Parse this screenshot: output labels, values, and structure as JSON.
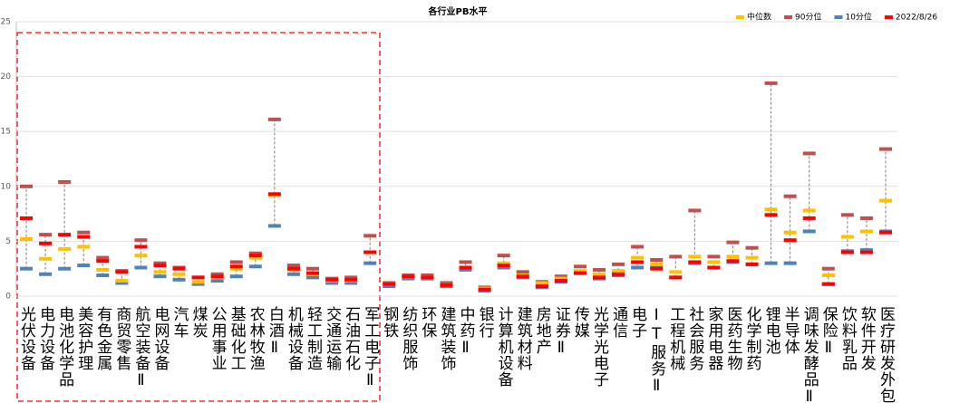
{
  "chart_data": {
    "type": "range",
    "title": "各行业PB水平",
    "categories": [
      "光伏设备",
      "电力设备",
      "电池化学品",
      "美容护理",
      "有色金属",
      "商贸零售",
      "航空装备Ⅱ",
      "电网设备",
      "汽车",
      "煤炭",
      "公用事业",
      "基础化工",
      "农林牧渔",
      "白酒Ⅱ",
      "机械设备",
      "轻工制造",
      "交通运输",
      "石油石化",
      "军工电子Ⅱ",
      "钢铁",
      "纺织服饰",
      "环保",
      "建筑装饰",
      "中药Ⅱ",
      "银行",
      "计算机设备",
      "建筑材料",
      "房地产",
      "证券Ⅱ",
      "传媒",
      "光学光电子",
      "通信",
      "电子",
      "IT服务Ⅱ",
      "工程机械",
      "社会服务",
      "家用电器",
      "医药生物",
      "化学制药",
      "锂电池",
      "半导体",
      "调味发酵品Ⅱ",
      "保险Ⅱ",
      "饮料乳品",
      "软件开发",
      "医疗研发外包"
    ],
    "series": [
      {
        "name": "中位数",
        "color": "#ffc000",
        "values": [
          5.2,
          3.4,
          4.3,
          4.5,
          2.4,
          1.4,
          3.7,
          2.2,
          2.0,
          1.3,
          1.7,
          2.5,
          3.5,
          9.2,
          2.4,
          2.0,
          1.4,
          1.4,
          4.0,
          1.1,
          1.8,
          1.7,
          1.0,
          2.6,
          0.7,
          3.0,
          1.9,
          1.2,
          1.6,
          2.3,
          2.0,
          2.3,
          3.5,
          2.9,
          2.2,
          3.6,
          3.1,
          3.6,
          3.5,
          7.9,
          5.8,
          7.8,
          1.9,
          5.4,
          5.9,
          8.7
        ]
      },
      {
        "name": "90分位",
        "color": "#c0504d",
        "values": [
          10.0,
          5.6,
          10.4,
          5.8,
          3.5,
          2.3,
          5.1,
          3.0,
          2.6,
          1.7,
          2.0,
          3.1,
          3.9,
          16.1,
          2.8,
          2.5,
          1.6,
          1.7,
          5.5,
          1.2,
          1.9,
          1.9,
          1.2,
          3.1,
          0.8,
          3.7,
          2.2,
          1.3,
          1.8,
          2.7,
          2.4,
          2.9,
          4.5,
          3.3,
          3.6,
          7.8,
          3.6,
          4.9,
          4.4,
          19.4,
          9.1,
          13.0,
          2.5,
          7.4,
          7.1,
          13.4
        ]
      },
      {
        "name": "10分位",
        "color": "#4f81bd",
        "values": [
          2.5,
          2.0,
          2.5,
          2.8,
          1.9,
          1.2,
          2.6,
          1.8,
          1.5,
          1.1,
          1.4,
          1.8,
          2.7,
          6.4,
          2.0,
          1.7,
          1.2,
          1.2,
          3.0,
          0.9,
          1.6,
          1.6,
          0.9,
          2.4,
          0.5,
          2.6,
          1.7,
          0.8,
          1.3,
          2.1,
          1.6,
          1.9,
          2.6,
          2.6,
          1.7,
          3.0,
          2.6,
          3.1,
          2.9,
          3.0,
          3.0,
          5.9,
          1.1,
          4.1,
          4.2,
          5.9
        ]
      },
      {
        "name": "2022/8/26",
        "color": "#ff0000",
        "values": [
          7.1,
          4.8,
          5.6,
          5.4,
          3.2,
          2.2,
          4.5,
          2.8,
          2.5,
          1.7,
          1.8,
          2.7,
          3.7,
          9.3,
          2.5,
          2.1,
          1.5,
          1.5,
          4.0,
          1.1,
          1.8,
          1.7,
          1.0,
          2.6,
          0.6,
          2.8,
          1.8,
          0.9,
          1.4,
          2.1,
          1.7,
          2.0,
          3.1,
          2.5,
          1.7,
          3.1,
          2.6,
          3.2,
          2.9,
          7.4,
          5.1,
          7.1,
          1.1,
          4.0,
          4.0,
          5.8
        ]
      }
    ],
    "ylim": [
      0,
      25
    ],
    "yticks": [
      0,
      5,
      10,
      15,
      20,
      25
    ],
    "grid": true,
    "legend": "top-right"
  }
}
